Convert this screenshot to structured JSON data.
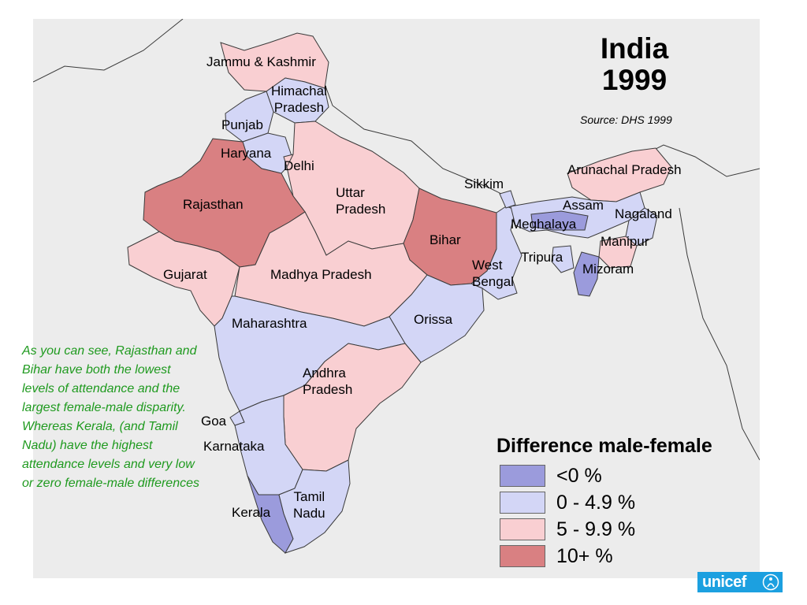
{
  "map": {
    "title": "India",
    "year": "1999",
    "source": "Source: DHS 1999",
    "regions": {
      "jammu_kashmir": {
        "name": "Jammu & Kashmir",
        "category": "5-9.9"
      },
      "himachal": {
        "name": "Himachal Pradesh",
        "line1": "Himachal",
        "line2": "Pradesh",
        "category": "0-4.9"
      },
      "punjab": {
        "name": "Punjab",
        "category": "0-4.9"
      },
      "haryana": {
        "name": "Haryana",
        "category": "0-4.9"
      },
      "delhi": {
        "name": "Delhi",
        "category": "5-9.9"
      },
      "rajasthan": {
        "name": "Rajasthan",
        "category": "10+"
      },
      "uttar_pradesh": {
        "name": "Uttar Pradesh",
        "line1": "Uttar",
        "line2": "Pradesh",
        "category": "5-9.9"
      },
      "bihar": {
        "name": "Bihar",
        "category": "10+"
      },
      "sikkim": {
        "name": "Sikkim",
        "category": "0-4.9"
      },
      "arunachal": {
        "name": "Arunachal Pradesh",
        "category": "5-9.9"
      },
      "assam": {
        "name": "Assam",
        "category": "0-4.9"
      },
      "nagaland": {
        "name": "Nagaland",
        "category": "0-4.9"
      },
      "meghalaya": {
        "name": "Meghalaya",
        "category": "<0"
      },
      "manipur": {
        "name": "Manipur",
        "category": "5-9.9"
      },
      "tripura": {
        "name": "Tripura",
        "category": "0-4.9"
      },
      "mizoram": {
        "name": "Mizoram",
        "category": "<0"
      },
      "west_bengal": {
        "name": "West Bengal",
        "line1": "West",
        "line2": "Bengal",
        "category": "0-4.9"
      },
      "gujarat": {
        "name": "Gujarat",
        "category": "5-9.9"
      },
      "madhya_pradesh": {
        "name": "Madhya Pradesh",
        "category": "5-9.9"
      },
      "orissa": {
        "name": "Orissa",
        "category": "0-4.9"
      },
      "maharashtra": {
        "name": "Maharashtra",
        "category": "0-4.9"
      },
      "andhra": {
        "name": "Andhra Pradesh",
        "line1": "Andhra",
        "line2": "Pradesh",
        "category": "5-9.9"
      },
      "goa": {
        "name": "Goa",
        "category": "0-4.9"
      },
      "karnataka": {
        "name": "Karnataka",
        "category": "0-4.9"
      },
      "kerala": {
        "name": "Kerala",
        "category": "<0"
      },
      "tamil_nadu": {
        "name": "Tamil Nadu",
        "line1": "Tamil",
        "line2": "Nadu",
        "category": "0-4.9"
      }
    }
  },
  "caption": "As you can see, Rajasthan and Bihar have both the lowest levels of attendance and the largest female-male disparity. Whereas Kerala, (and Tamil Nadu) have the highest attendance levels and very low or zero female-male differences",
  "legend": {
    "title": "Difference male-female",
    "items": [
      {
        "key": "<0",
        "label": "<0 %",
        "color": "#9b9bdc"
      },
      {
        "key": "0-4.9",
        "label": "0 - 4.9 %",
        "color": "#d3d6f6"
      },
      {
        "key": "5-9.9",
        "label": "5 - 9.9 %",
        "color": "#f9cfd2"
      },
      {
        "key": "10+",
        "label": "10+ %",
        "color": "#d98082"
      }
    ]
  },
  "colors": {
    "background_land": "#ececec",
    "border": "#3a3a3a",
    "caption_text": "#1f9a1f",
    "logo_bg": "#1ca0e0"
  },
  "logo": {
    "text": "unicef",
    "icon": "unicef-emblem-icon"
  }
}
